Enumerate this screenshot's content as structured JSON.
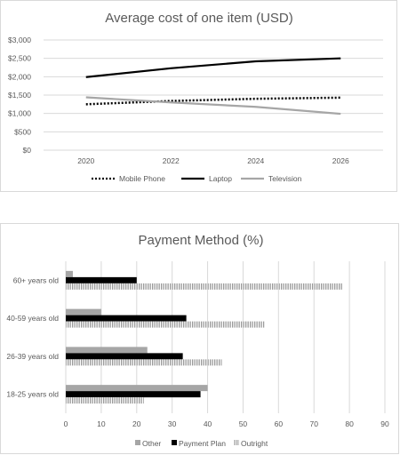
{
  "chart_data": [
    {
      "type": "line",
      "title": "Average cost of one item (USD)",
      "x": [
        2020,
        2026
      ],
      "x_ticks": [
        "2020",
        "2022",
        "2024",
        "2026"
      ],
      "y_ticks": [
        "$0",
        "$500",
        "$1,000",
        "$1,500",
        "$2,000",
        "$2,500",
        "$3,000"
      ],
      "ylim": [
        0,
        3000
      ],
      "xlim": [
        2019,
        2027
      ],
      "grid": true,
      "legend": "bottom",
      "series": [
        {
          "name": "Mobile Phone",
          "style": "dotted",
          "color": "#000000",
          "points": [
            [
              2020,
              1250
            ],
            [
              2022,
              1340
            ],
            [
              2024,
              1400
            ],
            [
              2026,
              1430
            ]
          ]
        },
        {
          "name": "Laptop",
          "style": "solid",
          "color": "#000000",
          "points": [
            [
              2020,
              1990
            ],
            [
              2022,
              2230
            ],
            [
              2024,
              2420
            ],
            [
              2026,
              2500
            ]
          ]
        },
        {
          "name": "Television",
          "style": "solid",
          "color": "#a6a6a6",
          "points": [
            [
              2020,
              1440
            ],
            [
              2022,
              1300
            ],
            [
              2024,
              1180
            ],
            [
              2026,
              990
            ]
          ]
        }
      ]
    },
    {
      "type": "bar",
      "orientation": "horizontal",
      "title": "Payment Method (%)",
      "categories": [
        "18-25 years old",
        "26-39 years old",
        "40-59 years old",
        "60+ years old"
      ],
      "x_ticks": [
        "0",
        "10",
        "20",
        "30",
        "40",
        "50",
        "60",
        "70",
        "80",
        "90"
      ],
      "xlim": [
        0,
        90
      ],
      "grid": true,
      "legend": "bottom",
      "series": [
        {
          "name": "Other",
          "color": "#a6a6a6",
          "pattern": "solid",
          "values": [
            40,
            23,
            10,
            2
          ]
        },
        {
          "name": "Payment Plan",
          "color": "#000000",
          "pattern": "solid",
          "values": [
            38,
            33,
            34,
            20
          ]
        },
        {
          "name": "Outright",
          "color": "#bfbfbf",
          "pattern": "vertical-stripes",
          "values": [
            22,
            44,
            56,
            78
          ]
        }
      ]
    }
  ]
}
